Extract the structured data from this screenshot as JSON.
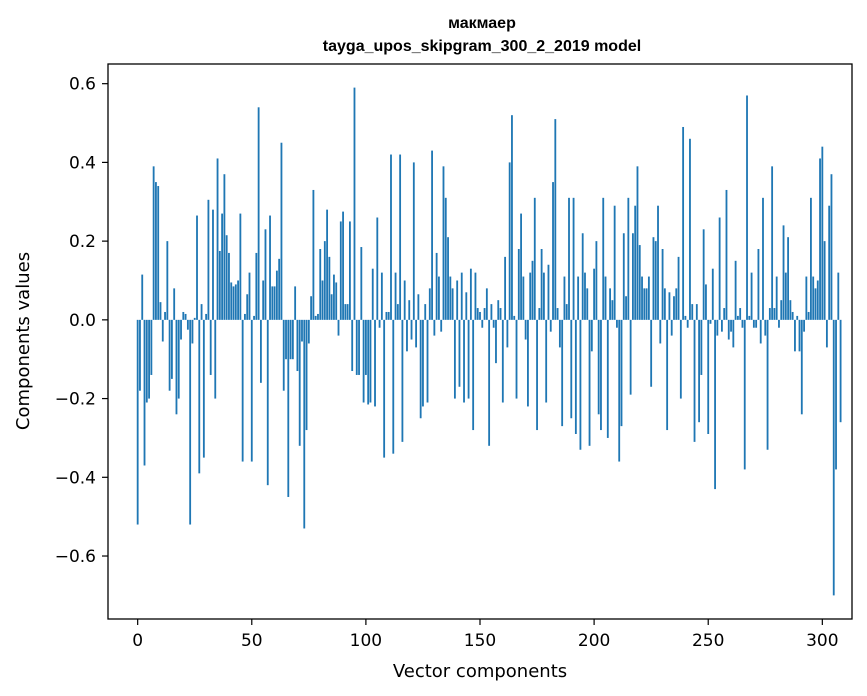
{
  "chart_data": {
    "type": "bar",
    "title": "макмаер",
    "subtitle": "tayga_upos_skipgram_300_2_2019 model",
    "xlabel": "Vector components",
    "ylabel": "Components values",
    "xlim": [
      -13,
      313
    ],
    "ylim": [
      -0.76,
      0.65
    ],
    "xticks": [
      0,
      50,
      100,
      150,
      200,
      250,
      300
    ],
    "yticks": [
      -0.6,
      -0.4,
      -0.2,
      0.0,
      0.2,
      0.4,
      0.6
    ],
    "ytick_labels": [
      "−0.6",
      "−0.4",
      "−0.2",
      "0.0",
      "0.2",
      "0.4",
      "0.6"
    ],
    "bar_color": "#1f77b4",
    "values": [
      -0.52,
      -0.18,
      0.115,
      -0.37,
      -0.21,
      -0.2,
      -0.14,
      0.39,
      0.35,
      0.34,
      0.045,
      -0.055,
      0.02,
      0.2,
      -0.18,
      -0.15,
      0.08,
      -0.24,
      -0.2,
      -0.05,
      0.02,
      0.015,
      -0.025,
      -0.52,
      -0.06,
      0.005,
      0.265,
      -0.39,
      0.04,
      -0.35,
      0.015,
      0.305,
      -0.14,
      0.28,
      -0.2,
      0.41,
      0.175,
      0.27,
      0.37,
      0.215,
      0.17,
      0.095,
      0.085,
      0.09,
      0.1,
      0.27,
      -0.36,
      0.015,
      0.065,
      0.12,
      -0.36,
      0.01,
      0.17,
      0.54,
      -0.16,
      0.1,
      0.23,
      -0.42,
      0.265,
      0.085,
      0.085,
      0.125,
      0.155,
      0.45,
      -0.18,
      -0.1,
      -0.45,
      -0.1,
      -0.1,
      0.085,
      -0.13,
      -0.32,
      -0.055,
      -0.53,
      -0.28,
      -0.06,
      0.06,
      0.33,
      0.01,
      0.015,
      0.18,
      0.1,
      0.2,
      0.28,
      0.16,
      0.065,
      0.115,
      0.095,
      -0.04,
      0.25,
      0.275,
      0.04,
      0.04,
      0.25,
      -0.13,
      0.59,
      -0.14,
      -0.14,
      0.185,
      -0.21,
      -0.14,
      -0.215,
      -0.21,
      0.13,
      -0.22,
      0.26,
      -0.02,
      0.12,
      -0.35,
      0.02,
      0.02,
      0.42,
      -0.34,
      0.12,
      0.04,
      0.42,
      -0.31,
      0.1,
      -0.08,
      0.05,
      -0.05,
      0.4,
      -0.07,
      0.065,
      -0.25,
      -0.22,
      0.04,
      -0.21,
      0.08,
      0.43,
      -0.04,
      0.17,
      0.11,
      -0.03,
      0.39,
      0.31,
      0.21,
      0.11,
      0.08,
      -0.2,
      0.1,
      -0.17,
      0.12,
      -0.21,
      0.07,
      -0.2,
      0.13,
      -0.28,
      0.12,
      0.03,
      0.02,
      -0.02,
      0.03,
      0.08,
      -0.32,
      0.04,
      -0.02,
      -0.11,
      0.05,
      0.03,
      -0.21,
      0.16,
      -0.07,
      0.4,
      0.52,
      0.01,
      -0.2,
      0.18,
      0.27,
      0.11,
      -0.05,
      -0.22,
      0.12,
      0.15,
      0.31,
      -0.28,
      0.03,
      0.18,
      0.12,
      -0.21,
      0.14,
      -0.03,
      0.35,
      0.51,
      0.03,
      -0.07,
      -0.27,
      0.11,
      0.04,
      0.31,
      -0.25,
      0.31,
      -0.29,
      0.11,
      -0.33,
      0.22,
      0.12,
      0.08,
      -0.32,
      -0.08,
      0.13,
      0.2,
      -0.24,
      -0.28,
      0.31,
      0.11,
      -0.3,
      0.08,
      0.05,
      0.29,
      -0.02,
      -0.36,
      -0.27,
      0.22,
      0.06,
      0.31,
      -0.19,
      0.22,
      0.29,
      0.39,
      0.19,
      0.11,
      0.08,
      0.08,
      0.11,
      -0.17,
      0.21,
      0.2,
      0.29,
      -0.06,
      0.18,
      0.08,
      -0.28,
      0.07,
      -0.04,
      0.06,
      0.08,
      0.16,
      -0.2,
      0.49,
      0.01,
      -0.02,
      0.46,
      0.04,
      -0.31,
      0.04,
      -0.26,
      -0.14,
      0.23,
      0.09,
      -0.29,
      -0.01,
      0.13,
      -0.43,
      -0.04,
      0.26,
      -0.03,
      0.03,
      0.33,
      -0.05,
      -0.03,
      -0.07,
      0.15,
      0.01,
      0.03,
      -0.02,
      -0.38,
      0.57,
      0.01,
      0.12,
      -0.02,
      -0.02,
      0.18,
      -0.06,
      0.31,
      -0.04,
      -0.33,
      0.03,
      0.39,
      0.03,
      0.11,
      -0.02,
      0.05,
      0.24,
      0.12,
      0.21,
      0.05,
      0.02,
      -0.08,
      0.01,
      -0.08,
      -0.24,
      -0.03,
      0.11,
      0.02,
      0.31,
      0.11,
      0.08,
      0.1,
      0.41,
      0.44,
      0.2,
      -0.07,
      0.29,
      0.37,
      -0.7,
      -0.38,
      0.12,
      -0.26
    ]
  }
}
